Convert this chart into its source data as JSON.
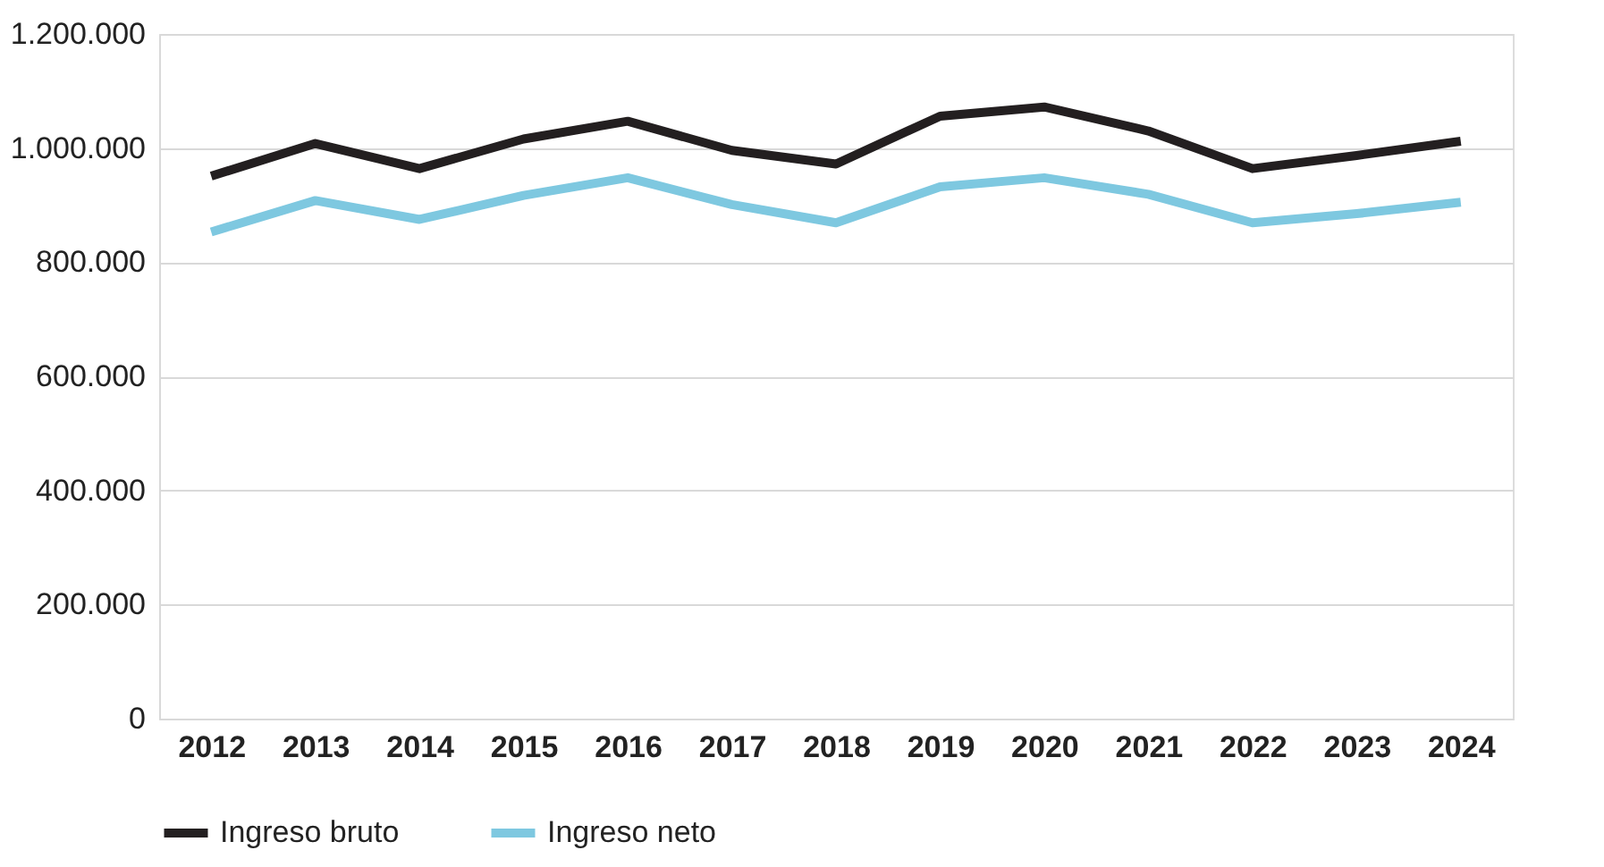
{
  "chart_data": {
    "type": "line",
    "categories": [
      "2012",
      "2013",
      "2014",
      "2015",
      "2016",
      "2017",
      "2018",
      "2019",
      "2020",
      "2021",
      "2022",
      "2023",
      "2024"
    ],
    "series": [
      {
        "name": "Ingreso bruto",
        "color": "#231f20",
        "values": [
          951000,
          1008000,
          964000,
          1016000,
          1047000,
          996000,
          972000,
          1056000,
          1072000,
          1030000,
          964000,
          987000,
          1012000
        ]
      },
      {
        "name": "Ingreso neto",
        "color": "#7ec8e0",
        "values": [
          853000,
          908000,
          875000,
          917000,
          948000,
          901000,
          869000,
          932000,
          948000,
          919000,
          869000,
          885000,
          905000
        ]
      }
    ],
    "ylim": [
      0,
      1200000
    ],
    "yticks": [
      0,
      {
        "value": 200000,
        "label": "200.000"
      },
      {
        "value": 400000,
        "label": "400.000"
      },
      {
        "value": 600000,
        "label": "600.000"
      },
      {
        "value": 800000,
        "label": "800.000"
      },
      {
        "value": 1000000,
        "label": "1.000.000"
      },
      {
        "value": 1200000,
        "label": "1.200.000"
      }
    ],
    "grid": "y",
    "legend": "bottom",
    "marker": "none",
    "line_style": "solid"
  }
}
